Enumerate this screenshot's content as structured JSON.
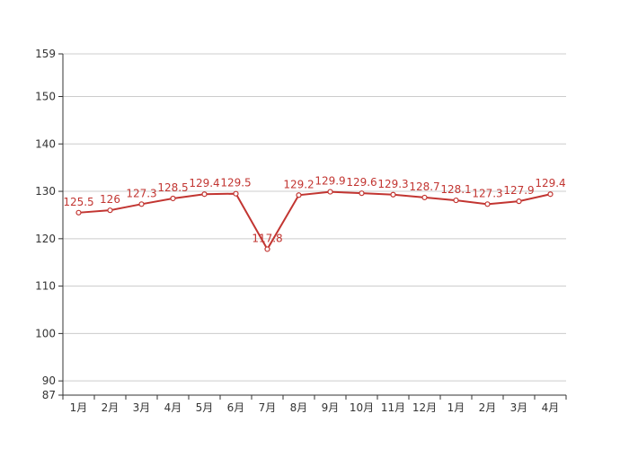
{
  "chart_data": {
    "type": "line",
    "categories": [
      "1月",
      "2月",
      "3月",
      "4月",
      "5月",
      "6月",
      "7月",
      "8月",
      "9月",
      "10月",
      "11月",
      "12月",
      "1月",
      "2月",
      "3月",
      "4月"
    ],
    "series": [
      {
        "values": [
          125.5,
          126,
          127.3,
          128.5,
          129.4,
          129.5,
          117.8,
          129.2,
          129.9,
          129.6,
          129.3,
          128.7,
          128.1,
          127.3,
          127.9,
          129.4
        ]
      }
    ],
    "data_labels": [
      "125.5",
      "126",
      "127.3",
      "128.5",
      "129.4",
      "129.5",
      "117.8",
      "129.2",
      "129.9",
      "129.6",
      "129.3",
      "128.7",
      "128.1",
      "127.3",
      "127.9",
      "129.4"
    ],
    "y_ticks": [
      87,
      90,
      100,
      110,
      120,
      130,
      140,
      150,
      159
    ],
    "y_tick_labels": [
      "87",
      "90",
      "100",
      "110",
      "120",
      "130",
      "140",
      "150",
      "159"
    ],
    "ylim": [
      87,
      159
    ],
    "grid": true,
    "line_color": "#c23531",
    "grid_color": "#cccccc",
    "axis_color": "#333333"
  }
}
